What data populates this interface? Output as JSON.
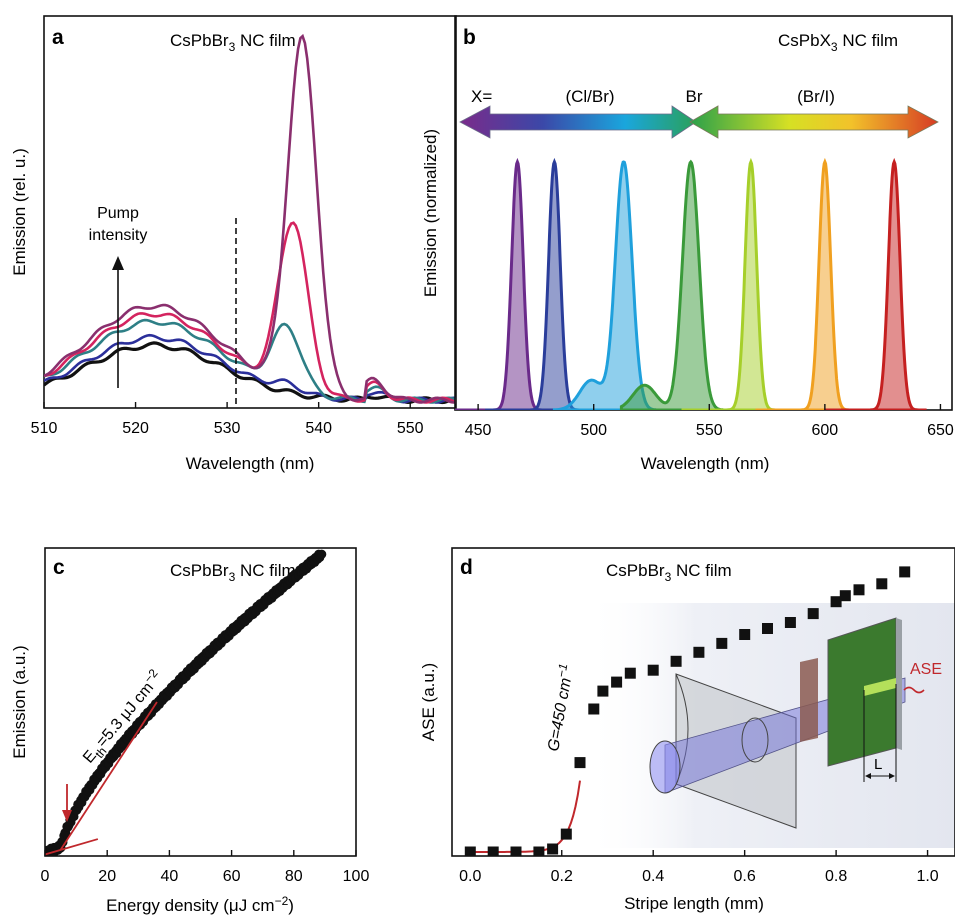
{
  "panels": {
    "a": {
      "letter": "a",
      "title_main": "CsPbBr",
      "title_sub": "3",
      "title_tail": " NC film",
      "xlabel": "Wavelength (nm)",
      "ylabel": "Emission (rel. u.)",
      "annotation_line1": "Pump",
      "annotation_line2": "intensity",
      "xticks": [
        "510",
        "520",
        "530",
        "540",
        "550"
      ]
    },
    "b": {
      "letter": "b",
      "title_main": "CsPbX",
      "title_sub": "3",
      "title_tail": " NC film",
      "xlabel": "Wavelength (nm)",
      "ylabel": "Emission (normalized)",
      "label_x": "X=",
      "label_clbr": "(Cl/Br)",
      "label_br": "Br",
      "label_bri": "(Br/I)",
      "xticks": [
        "450",
        "500",
        "550",
        "600",
        "650"
      ]
    },
    "c": {
      "letter": "c",
      "title_main": "CsPbBr",
      "title_sub": "3",
      "title_tail": " NC film",
      "xlabel_main": "Energy density (μJ cm",
      "xlabel_sup": "−2",
      "xlabel_tail": ")",
      "ylabel": "Emission (a.u.)",
      "eth_main": "E",
      "eth_sub": "th",
      "eth_tail": "=5.3 μJ cm",
      "eth_sup": "−2",
      "xticks": [
        "0",
        "20",
        "40",
        "60",
        "80",
        "100"
      ]
    },
    "d": {
      "letter": "d",
      "title_main": "CsPbBr",
      "title_sub": "3",
      "title_tail": " NC film",
      "xlabel": "Stripe length (mm)",
      "ylabel": "ASE (a.u.)",
      "gain_label": "G=450 cm",
      "gain_sup": "−1",
      "inset_ase": "ASE",
      "inset_l": "L",
      "xticks": [
        "0.0",
        "0.2",
        "0.4",
        "0.6",
        "0.8",
        "1.0"
      ]
    }
  },
  "colors": {
    "a_series": [
      "#111111",
      "#2b2f9a",
      "#2e7f86",
      "#d4245f",
      "#8a2f6e"
    ],
    "b_peaks": [
      "#6a2a8a",
      "#2a3d9a",
      "#1fa0dc",
      "#3a9a3a",
      "#a6cf2a",
      "#f0a020",
      "#c52020"
    ],
    "red_fit": "#c0282c"
  },
  "chart_data": [
    {
      "panel": "a",
      "type": "line",
      "xlim": [
        510,
        555
      ],
      "xticks": [
        510,
        520,
        530,
        540,
        550
      ],
      "xlabel": "Wavelength (nm)",
      "ylabel": "Emission (rel. u.)",
      "series_order": "increasing pump intensity",
      "series": [
        {
          "peak_nm": 522,
          "broad_height": 0.14,
          "narrow_center_nm": 536.5,
          "narrow_height": 0.0
        },
        {
          "peak_nm": 522,
          "broad_height": 0.16,
          "narrow_center_nm": 536.5,
          "narrow_height": 0.02
        },
        {
          "peak_nm": 522,
          "broad_height": 0.2,
          "narrow_center_nm": 536.5,
          "narrow_height": 0.16
        },
        {
          "peak_nm": 522,
          "broad_height": 0.22,
          "narrow_center_nm": 537.2,
          "narrow_height": 0.43
        },
        {
          "peak_nm": 522,
          "broad_height": 0.24,
          "narrow_center_nm": 538.2,
          "narrow_height": 0.9
        }
      ]
    },
    {
      "panel": "b",
      "type": "area",
      "xlim": [
        440,
        655
      ],
      "xticks": [
        450,
        500,
        550,
        600,
        650
      ],
      "xlabel": "Wavelength (nm)",
      "ylabel": "Emission (normalized)",
      "peaks_nm": [
        467,
        483,
        513,
        542,
        568,
        600,
        630
      ],
      "shoulders": [
        {
          "peak_index": 2,
          "center_nm": 499,
          "height": 0.12
        },
        {
          "peak_index": 3,
          "center_nm": 522,
          "height": 0.1
        }
      ]
    },
    {
      "panel": "c",
      "type": "scatter",
      "xlim": [
        0,
        100
      ],
      "ylim": [
        0,
        1
      ],
      "xticks": [
        0,
        20,
        40,
        60,
        80,
        100
      ],
      "xlabel": "Energy density (μJ cm−2)",
      "ylabel": "Emission (a.u.)",
      "threshold": 5.3,
      "x_range": [
        0,
        89
      ],
      "y_end": 0.98
    },
    {
      "panel": "d",
      "type": "scatter",
      "xlim": [
        -0.04,
        1.06
      ],
      "ylim": [
        0,
        1
      ],
      "xticks": [
        0.0,
        0.2,
        0.4,
        0.6,
        0.8,
        1.0
      ],
      "xlabel": "Stripe length (mm)",
      "ylabel": "ASE (a.u.)",
      "gain": 450,
      "x": [
        0.0,
        0.05,
        0.1,
        0.15,
        0.18,
        0.21,
        0.24,
        0.27,
        0.29,
        0.32,
        0.35,
        0.4,
        0.45,
        0.5,
        0.55,
        0.6,
        0.65,
        0.7,
        0.75,
        0.8,
        0.82,
        0.85,
        0.9,
        0.95
      ],
      "y": [
        0.0,
        0.0,
        0.0,
        0.0,
        0.01,
        0.06,
        0.3,
        0.48,
        0.54,
        0.57,
        0.6,
        0.61,
        0.64,
        0.67,
        0.7,
        0.73,
        0.75,
        0.77,
        0.8,
        0.84,
        0.86,
        0.88,
        0.9,
        0.94
      ]
    }
  ]
}
